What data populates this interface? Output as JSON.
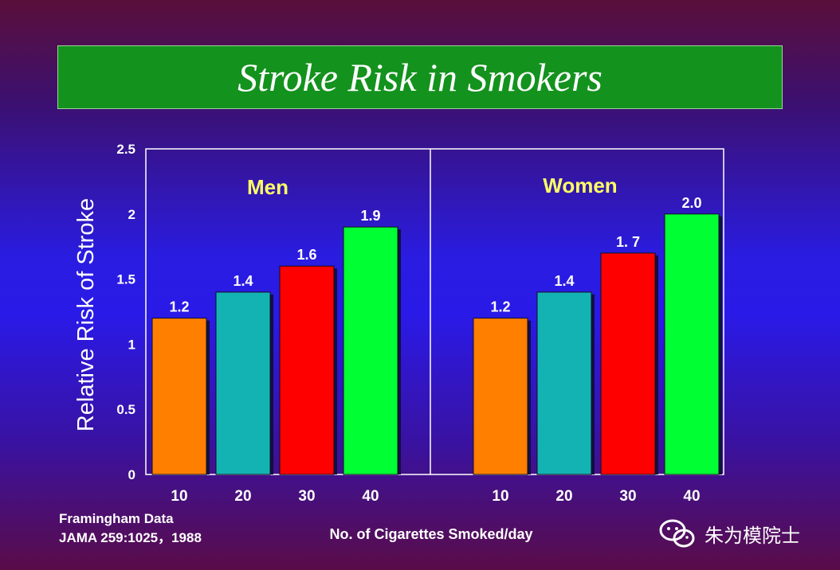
{
  "title": "Stroke Risk in Smokers",
  "source_line1": "Framingham Data",
  "source_line2": "JAMA 259:1025，1988",
  "watermark_text": "朱为模院士",
  "chart_data": {
    "type": "bar",
    "ylabel": "Relative Risk of Stroke",
    "xlabel": "No. of Cigarettes Smoked/day",
    "ylim": [
      0,
      2.5
    ],
    "yticks": [
      "0",
      "0.5",
      "1",
      "1.5",
      "2",
      "2.5"
    ],
    "colors": [
      "#ff7f00",
      "#14b3b3",
      "#ff0000",
      "#00ff33"
    ],
    "panels": [
      {
        "label": "Men",
        "categories": [
          "10",
          "20",
          "30",
          "40"
        ],
        "values": [
          1.2,
          1.4,
          1.6,
          1.9
        ],
        "value_labels": [
          "1.2",
          "1.4",
          "1.6",
          "1.9"
        ]
      },
      {
        "label": "Women",
        "categories": [
          "10",
          "20",
          "30",
          "40"
        ],
        "values": [
          1.2,
          1.4,
          1.7,
          2.0
        ],
        "value_labels": [
          "1.2",
          "1.4",
          "1. 7",
          "2.0"
        ]
      }
    ],
    "panel_label_color": "#ffff66"
  }
}
